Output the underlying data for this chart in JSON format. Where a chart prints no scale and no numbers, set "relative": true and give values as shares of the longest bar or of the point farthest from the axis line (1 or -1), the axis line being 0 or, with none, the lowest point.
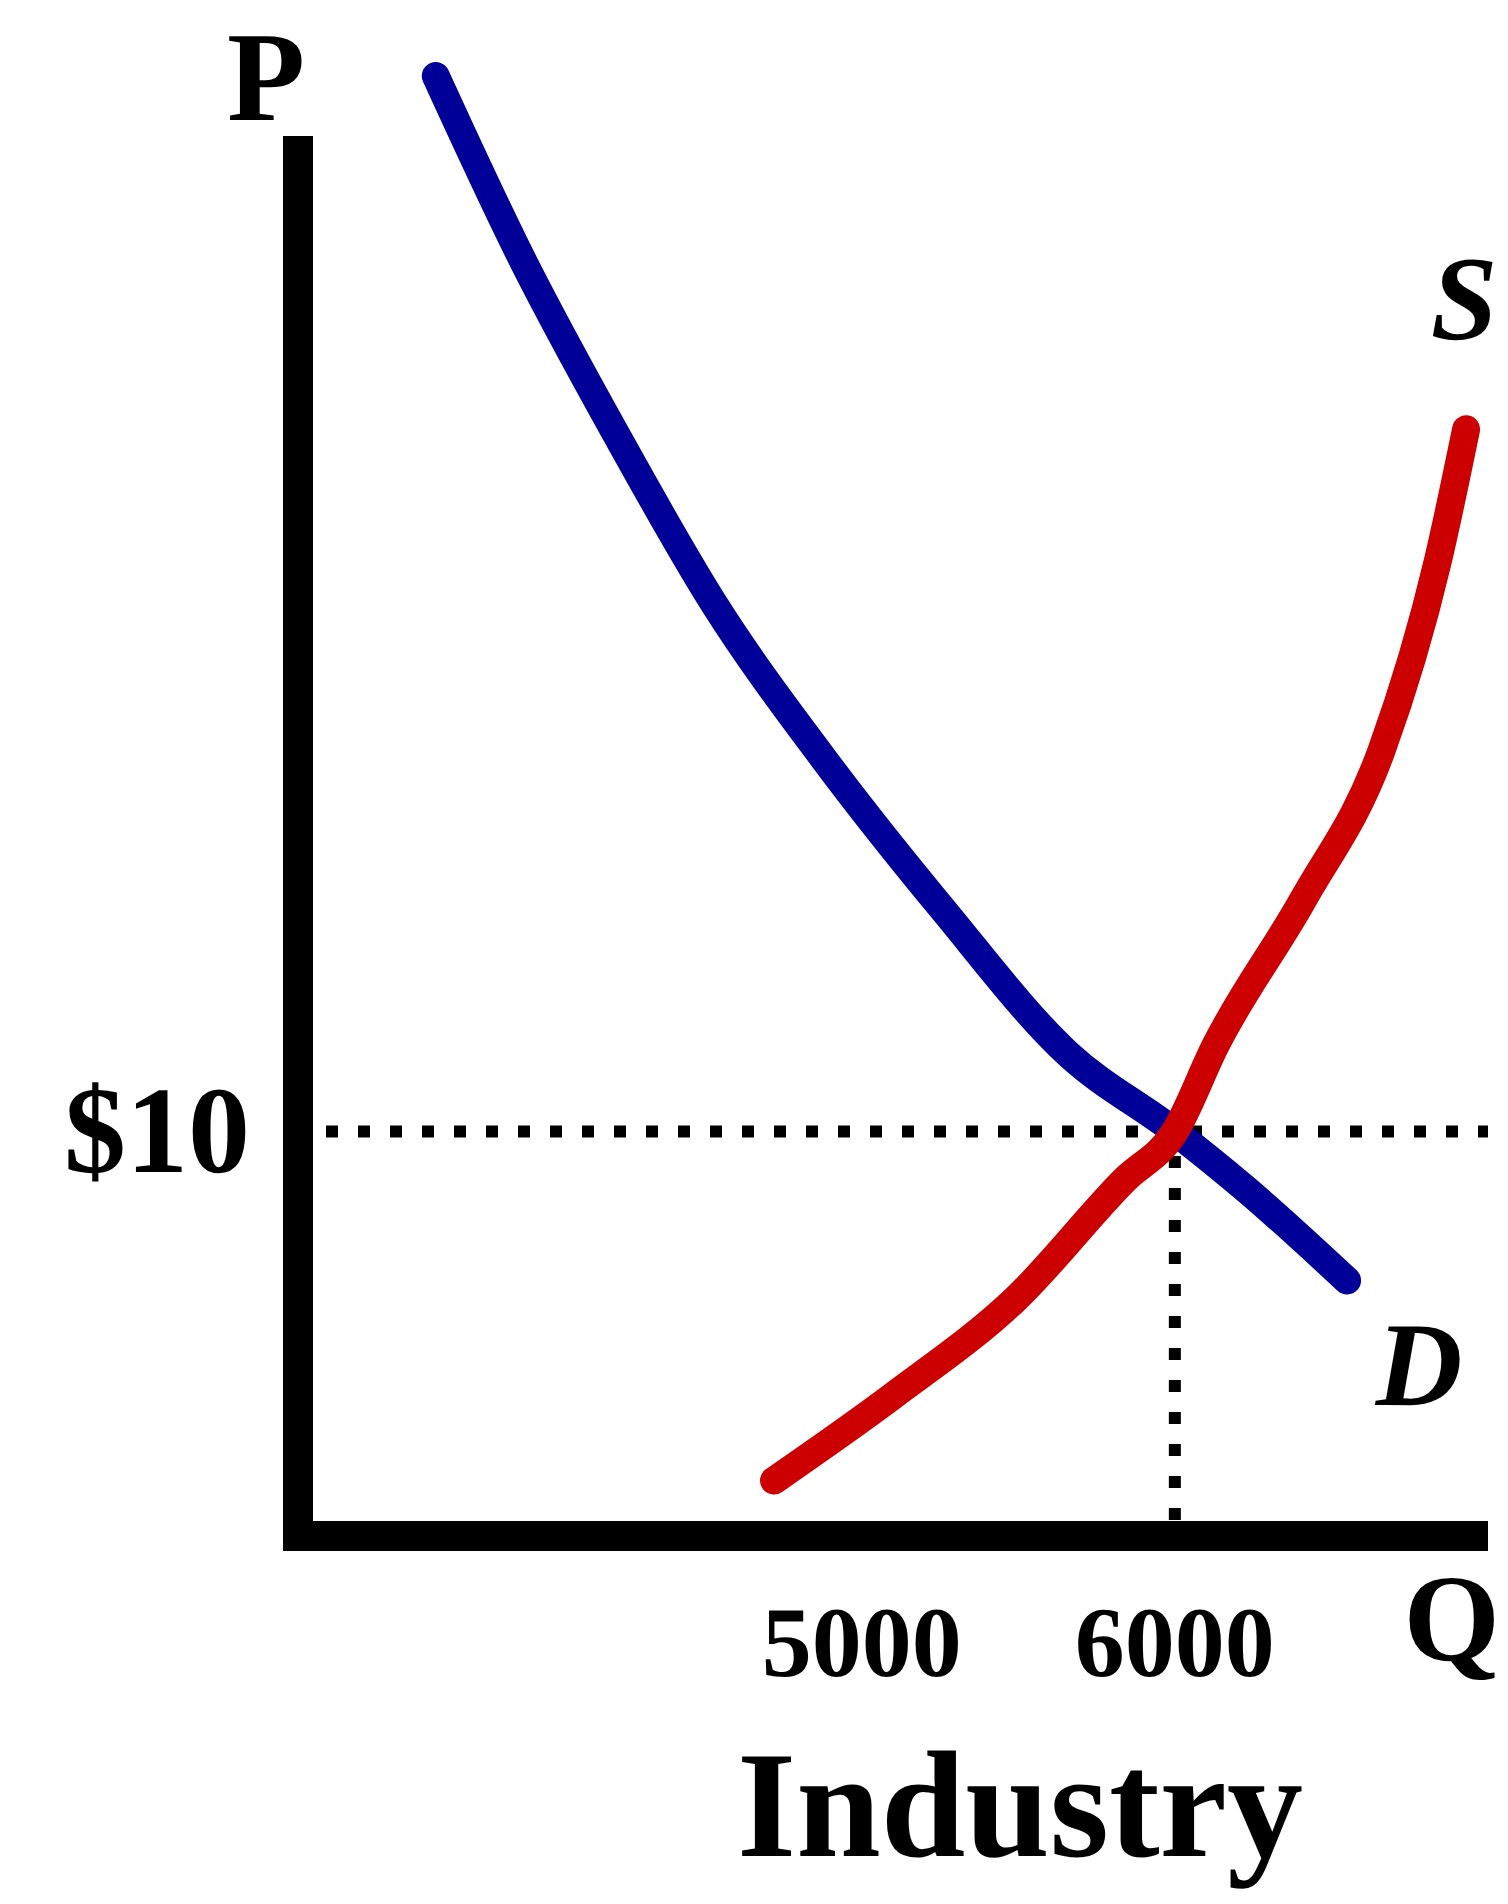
{
  "chart_data": {
    "type": "line",
    "title": "Industry",
    "xlabel": "Q",
    "ylabel": "P",
    "relative": true,
    "legend": false,
    "xlim": [
      3200,
      7000
    ],
    "xticks": [
      5000,
      6000
    ],
    "series": [
      {
        "name": "D",
        "color": "#000099",
        "x": [
          3640,
          3910,
          4220,
          4530,
          4880,
          5260,
          5660,
          6000,
          6230,
          6550
        ],
        "values": [
          1.0,
          0.877,
          0.753,
          0.638,
          0.532,
          0.429,
          0.33,
          0.277,
          0.237,
          0.175
        ]
      },
      {
        "name": "S",
        "color": "#cc0000",
        "x": [
          4720,
          5100,
          5490,
          5840,
          6000,
          6130,
          6410,
          6660,
          6840,
          6930
        ],
        "values": [
          0.038,
          0.096,
          0.162,
          0.244,
          0.277,
          0.336,
          0.436,
          0.538,
          0.668,
          0.758
        ]
      }
    ],
    "ref_lines": [
      {
        "axis": "y",
        "value": 0.277,
        "color": "#000000",
        "line_style": "dotted"
      },
      {
        "axis": "x",
        "value": 6000,
        "color": "#000000",
        "line_style": "dotted"
      }
    ],
    "annotations": [
      "$10"
    ]
  }
}
